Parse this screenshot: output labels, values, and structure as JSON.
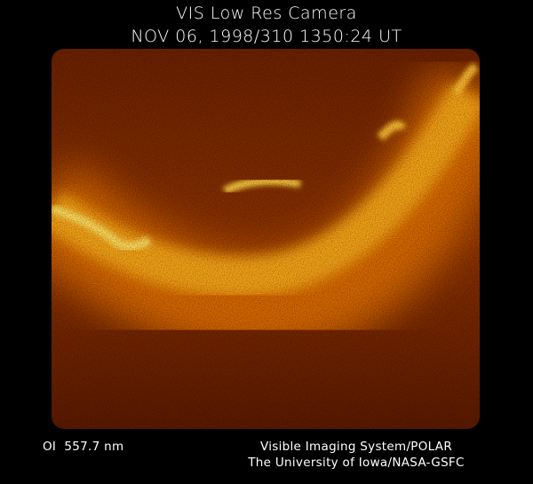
{
  "header": {
    "title": "VIS Low Res Camera",
    "timestamp": "NOV 06, 1998/310 1350:24 UT"
  },
  "footer": {
    "wavelength": "OI  557.7 nm",
    "credit_line1": "Visible Imaging System/POLAR",
    "credit_line2": "The University of Iowa/NASA-GSFC"
  },
  "image": {
    "subject": "auroral oval",
    "colors": {
      "background": "#000000",
      "dim": "#5a1800",
      "mid": "#b84a00",
      "bright": "#ffd23a"
    }
  }
}
